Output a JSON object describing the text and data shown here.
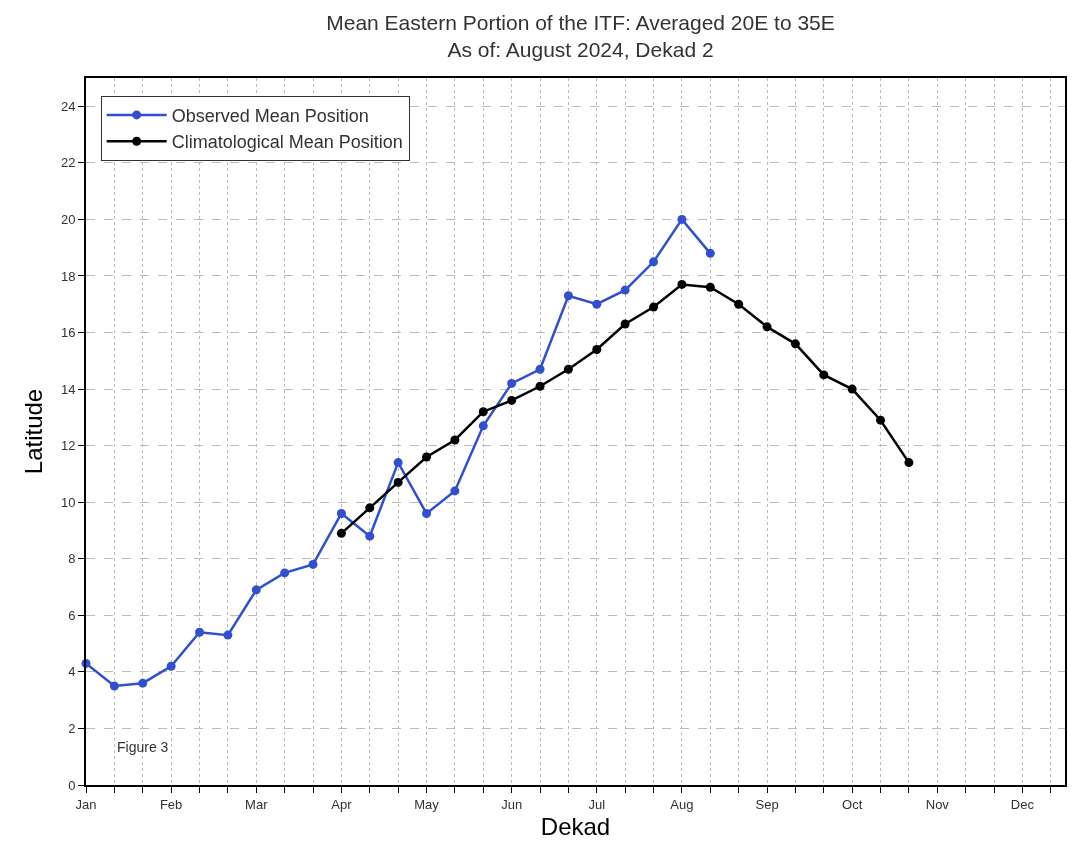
{
  "chart_data": {
    "type": "line",
    "title": "Mean Eastern Portion of the ITF: Averaged 20E to 35E\nAs of: August 2024, Dekad 2",
    "xlabel": "Dekad",
    "ylabel": "Latitude",
    "annotations": [
      "Figure 3"
    ],
    "categories": [
      "Jan",
      null,
      null,
      "Feb",
      null,
      null,
      "Mar",
      null,
      null,
      "Apr",
      null,
      null,
      "May",
      null,
      null,
      "Jun",
      null,
      null,
      "Jul",
      null,
      null,
      "Aug",
      null,
      null,
      "Sep",
      null,
      null,
      "Oct",
      null,
      null,
      "Nov",
      null,
      null,
      "Dec",
      null
    ],
    "ylim": [
      0,
      25
    ],
    "yticks": [
      0,
      2,
      4,
      6,
      8,
      10,
      12,
      14,
      16,
      18,
      20,
      22,
      24
    ],
    "grid": true,
    "legend": "top left",
    "marker": "circle",
    "line_style": "solid",
    "series": [
      {
        "name": "Observed Mean Position",
        "color": "#3050d0",
        "values": [
          4.3,
          3.5,
          3.6,
          4.2,
          5.4,
          5.3,
          6.9,
          7.5,
          7.8,
          9.6,
          8.8,
          11.4,
          9.6,
          10.4,
          12.7,
          14.2,
          14.7,
          17.3,
          17.0,
          17.5,
          18.5,
          20.0,
          18.8,
          null,
          null,
          null,
          null,
          null,
          null,
          null,
          null,
          null,
          null,
          null,
          null
        ]
      },
      {
        "name": "Climatological Mean Position",
        "color": "#000000",
        "values": [
          null,
          null,
          null,
          null,
          null,
          null,
          null,
          null,
          null,
          8.9,
          9.8,
          10.7,
          11.6,
          12.2,
          13.2,
          13.6,
          14.1,
          14.7,
          15.4,
          16.3,
          16.9,
          17.7,
          17.6,
          17.0,
          16.2,
          15.6,
          14.5,
          14.0,
          12.9,
          11.4,
          null,
          null,
          null,
          null,
          null
        ]
      }
    ]
  }
}
